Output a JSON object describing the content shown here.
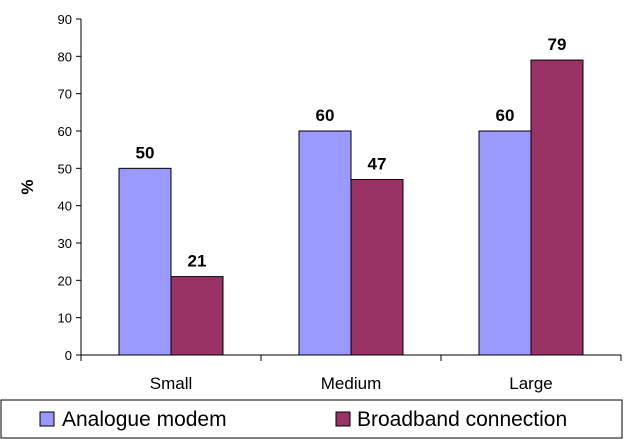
{
  "chart_data": {
    "type": "bar",
    "categories": [
      "Small",
      "Medium",
      "Large"
    ],
    "series": [
      {
        "name": "Analogue modem",
        "values": [
          50,
          60,
          60
        ],
        "color": "#9999ff"
      },
      {
        "name": "Broadband connection",
        "values": [
          21,
          47,
          79
        ],
        "color": "#993366"
      }
    ],
    "ylabel": "%",
    "xlabel": "",
    "ylim": [
      0,
      90
    ],
    "yticks": [
      "0",
      "10",
      "20",
      "30",
      "40",
      "50",
      "60",
      "70",
      "80",
      "90"
    ],
    "grid": false,
    "legend_position": "bottom"
  }
}
